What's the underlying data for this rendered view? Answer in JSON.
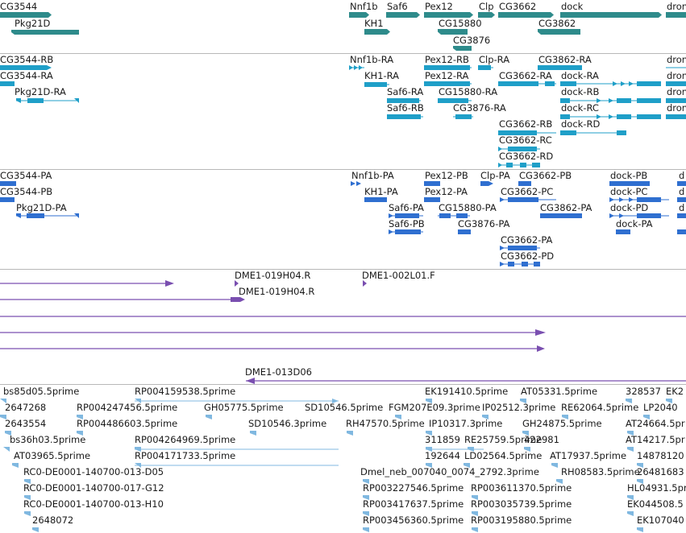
{
  "tracks": [
    {
      "id": "genes",
      "colors": {
        "main": "#2e8b8b"
      },
      "top": 0,
      "height": 66,
      "labels": [
        "CG3544",
        "Pkg21D",
        "Nnf1b",
        "KH1",
        "Saf6",
        "Pex12",
        "CG15880",
        "CG3876",
        "Clp",
        "CG3662",
        "CG3862",
        "dock",
        "dron"
      ]
    },
    {
      "id": "transcripts",
      "colors": {
        "main": "#1f9fc8"
      },
      "labels": [
        "CG3544-RB",
        "CG3544-RA",
        "Pkg21D-RA",
        "Nnf1b-RA",
        "KH1-RA",
        "Saf6-RA",
        "Saf6-RB",
        "Pex12-RB",
        "Pex12-RA",
        "CG15880-RA",
        "CG3876-RA",
        "Clp-RA",
        "CG3662-RA",
        "CG3662-RB",
        "CG3662-RC",
        "CG3662-RD",
        "CG3862-RA",
        "dock-RA",
        "dock-RB",
        "dock-RC",
        "dock-RD",
        "dron",
        "dron",
        "dron",
        "dron"
      ]
    },
    {
      "id": "proteins",
      "colors": {
        "main": "#2f6fd0"
      },
      "labels": [
        "CG3544-PA",
        "CG3544-PB",
        "Pkg21D-PA",
        "Nnf1b-PA",
        "KH1-PA",
        "Saf6-PA",
        "Saf6-PB",
        "Pex12-PB",
        "Pex12-PA",
        "CG15880-PA",
        "CG3876-PA",
        "Clp-PA",
        "CG3662-PB",
        "CG3662-PC",
        "CG3662-PA",
        "CG3662-PD",
        "CG3862-PA",
        "dock-PB",
        "dock-PC",
        "dock-PD",
        "dock-PA",
        "d",
        "d",
        "d"
      ]
    },
    {
      "id": "clones",
      "colors": {
        "main": "#7a4fb0"
      },
      "labels": [
        "DME1-019H04.R",
        "DME1-019H04.R",
        "DME1-002L01.F",
        "DME1-013D06"
      ]
    },
    {
      "id": "ests",
      "colors": {
        "main": "#80b8e0"
      },
      "labels": [
        "bs85d05.5prime",
        "2647268",
        "2643554",
        "bs36h03.5prime",
        "AT03965.5prime",
        "RC0-DE0001-140700-013-D05",
        "RC0-DE0001-140700-017-G12",
        "RC0-DE0001-140700-013-H10",
        "2648072",
        "RP004159538.5prime",
        "RP004247456.5prime",
        "RP004486603.5prime",
        "RP004264969.5prime",
        "RP004171733.5prime",
        "GH05775.5prime",
        "SD10546.3prime",
        "SD10546.5prime",
        "RH47570.5prime",
        "FGM207E09.3prime",
        "EK191410.5prime",
        "IP10317.3prime",
        "311859",
        "RE25759.5prime",
        "192644",
        "LD02564.5prime",
        "IP02512.3prime",
        "AT05331.5prime",
        "GH24875.5prime",
        "422981",
        "AT17937.5prime",
        "Dmel_neb_007040_0074_2792.3prime",
        "RH08583.5prime",
        "RP003227546.5prime",
        "RP003611370.5prime",
        "RP003417637.5prime",
        "RP003035739.5prime",
        "RP003456360.5prime",
        "RP003195880.5prime",
        "RE62064.5prime",
        "328537",
        "EK2",
        "LP2040",
        "AT24664.5pr",
        "AT14217.5pr",
        "14878120",
        "26481683",
        "HL04931.5pr",
        "EK044508.5",
        "EK107040"
      ]
    }
  ]
}
